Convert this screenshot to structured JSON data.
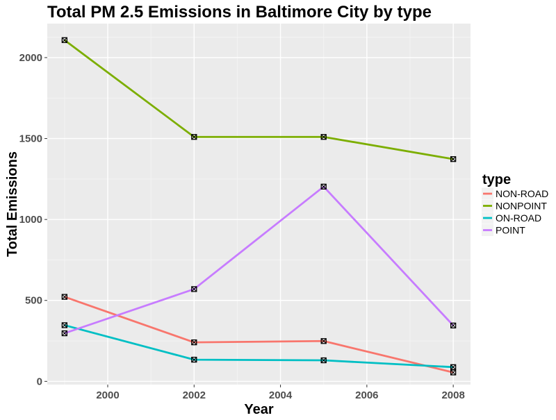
{
  "chart_data": {
    "type": "line",
    "title": "Total PM 2.5 Emissions in Baltimore City by type",
    "xlabel": "Year",
    "ylabel": "Total Emissions",
    "x": [
      1999,
      2002,
      2005,
      2008
    ],
    "xlim": [
      1998.6,
      2008.4
    ],
    "ylim": [
      -20,
      2210
    ],
    "xticks": [
      2000,
      2002,
      2004,
      2006,
      2008
    ],
    "yticks": [
      0,
      500,
      1000,
      1500,
      2000
    ],
    "grid": true,
    "legend": {
      "title": "type",
      "position": "right"
    },
    "series": [
      {
        "name": "NON-ROAD",
        "color": "#F8766D",
        "values": [
          522,
          241,
          249,
          55
        ]
      },
      {
        "name": "NONPOINT",
        "color": "#7CAE00",
        "values": [
          2108,
          1510,
          1510,
          1373
        ]
      },
      {
        "name": "ON-ROAD",
        "color": "#00BFC4",
        "values": [
          347,
          134,
          130,
          88
        ]
      },
      {
        "name": "POINT",
        "color": "#C77CFF",
        "values": [
          297,
          570,
          1203,
          345
        ]
      }
    ]
  }
}
